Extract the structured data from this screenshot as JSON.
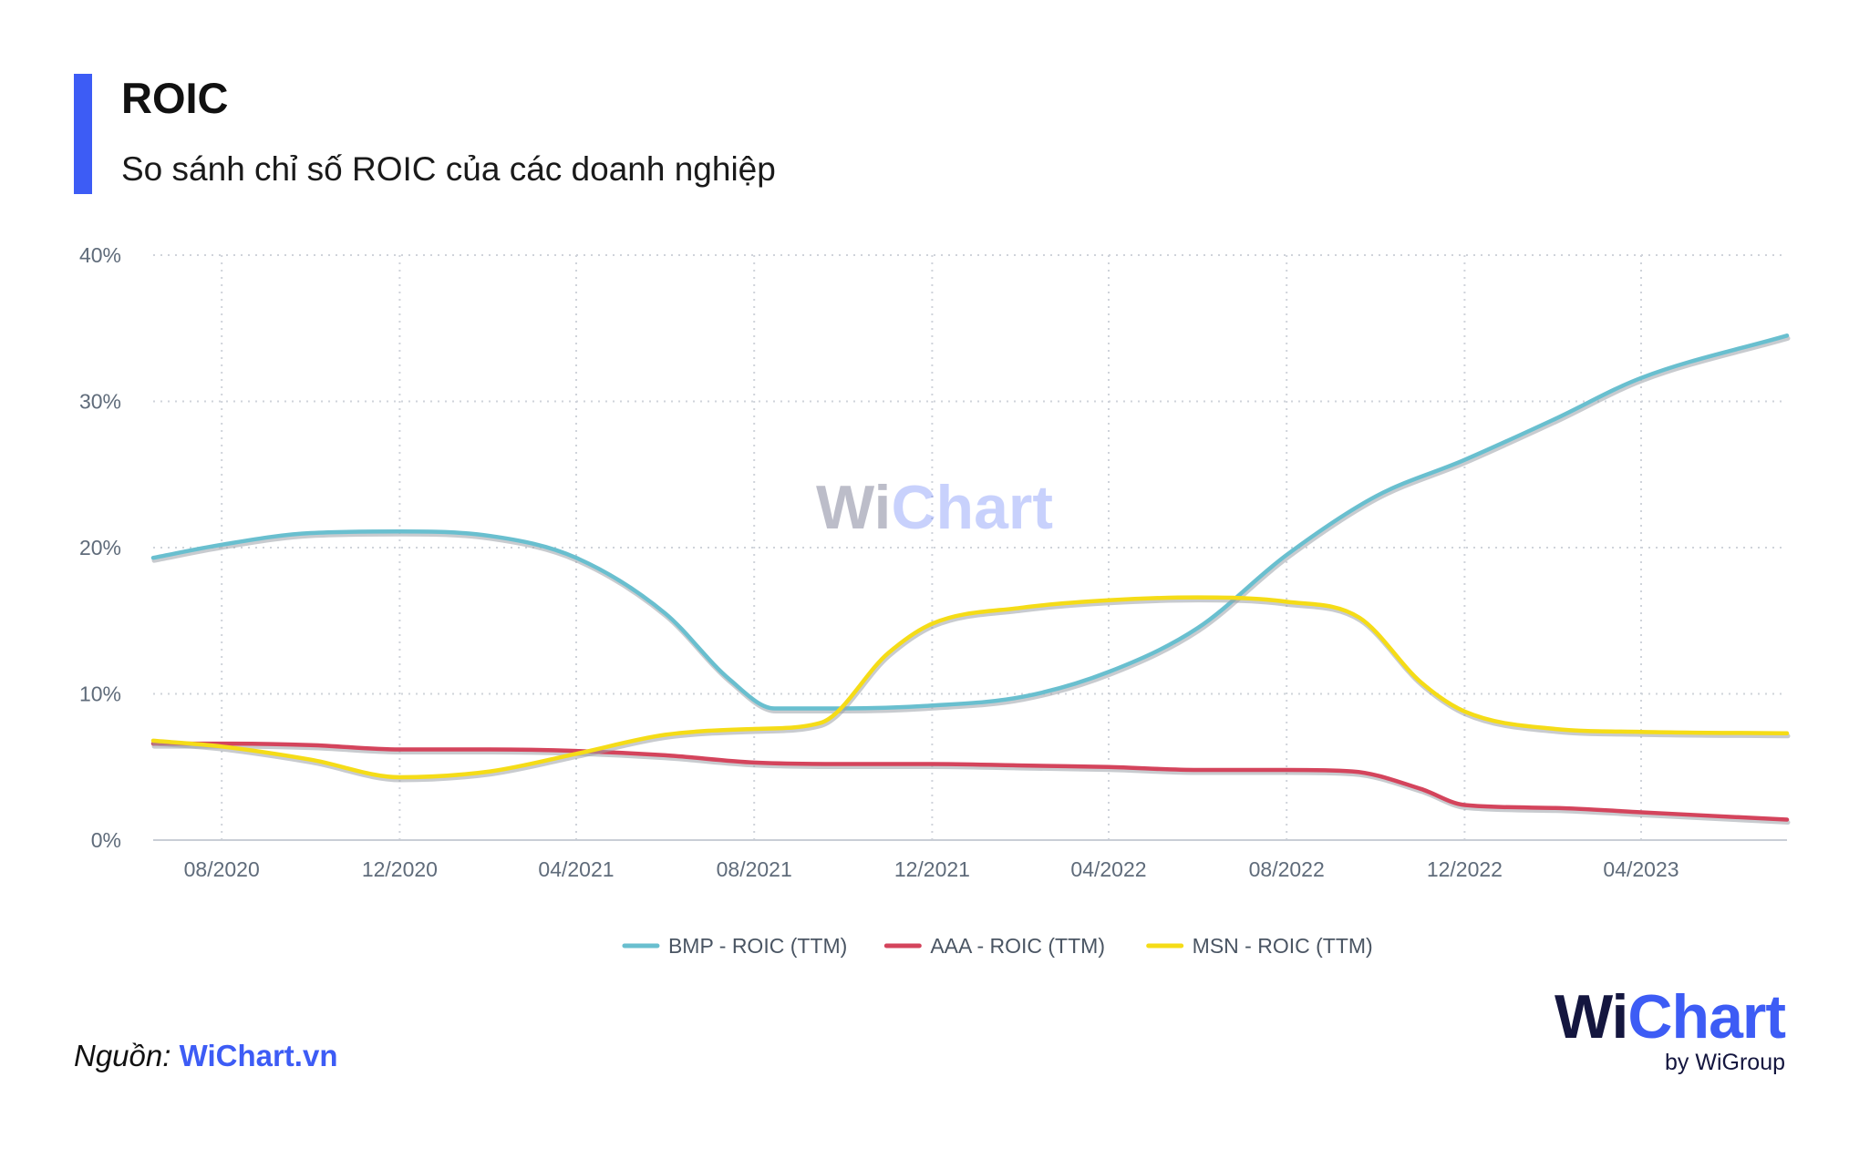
{
  "header": {
    "title": "ROIC",
    "subtitle": "So sánh chỉ số ROIC của các doanh nghiệp"
  },
  "footer": {
    "source_label": "Nguồn:",
    "source_name": "WiChart.vn"
  },
  "brand": {
    "logo_wi": "Wi",
    "logo_chart": "Chart",
    "tagline": "by WiGroup"
  },
  "watermark": {
    "wi": "Wi",
    "chart": "Chart"
  },
  "colors": {
    "accent": "#3d5cf5",
    "bmp": "#69bfcf",
    "aaa": "#d4445c",
    "msn": "#f5dc17"
  },
  "chart_data": {
    "type": "line",
    "title": "ROIC",
    "ylim": [
      0,
      40
    ],
    "xlim": [
      "2020-06-15",
      "2023-07-10"
    ],
    "y_ticks": [
      0,
      10,
      20,
      30,
      40
    ],
    "y_tick_labels": [
      "0%",
      "10%",
      "20%",
      "30%",
      "40%"
    ],
    "x_ticks": [
      "2020-08-01",
      "2020-12-01",
      "2021-04-01",
      "2021-08-01",
      "2021-12-01",
      "2022-04-01",
      "2022-08-01",
      "2022-12-01",
      "2023-04-01"
    ],
    "x_tick_labels": [
      "08/2020",
      "12/2020",
      "04/2021",
      "08/2021",
      "12/2021",
      "04/2022",
      "08/2022",
      "12/2022",
      "04/2023"
    ],
    "grid": true,
    "legend_position": "bottom-center",
    "series": [
      {
        "name": "BMP - ROIC (TTM)",
        "color": "#69bfcf",
        "x": [
          "2020-06-15",
          "2020-08-01",
          "2020-10-01",
          "2020-12-01",
          "2021-02-01",
          "2021-04-01",
          "2021-06-01",
          "2021-07-15",
          "2021-08-15",
          "2021-10-01",
          "2021-12-01",
          "2022-02-01",
          "2022-04-01",
          "2022-06-01",
          "2022-08-01",
          "2022-10-01",
          "2022-12-01",
          "2023-02-01",
          "2023-04-01",
          "2023-07-10"
        ],
        "y": [
          19.3,
          20.2,
          21.0,
          21.1,
          20.8,
          19.3,
          15.5,
          11.0,
          9.0,
          9.0,
          9.2,
          9.8,
          11.5,
          14.5,
          19.5,
          23.5,
          26.0,
          28.8,
          31.6,
          34.5
        ]
      },
      {
        "name": "AAA - ROIC (TTM)",
        "color": "#d4445c",
        "x": [
          "2020-06-15",
          "2020-08-01",
          "2020-10-01",
          "2020-12-01",
          "2021-02-01",
          "2021-04-01",
          "2021-06-01",
          "2021-08-01",
          "2021-10-01",
          "2021-12-01",
          "2022-02-01",
          "2022-04-01",
          "2022-06-01",
          "2022-08-01",
          "2022-09-15",
          "2022-11-01",
          "2022-12-01",
          "2023-02-01",
          "2023-04-01",
          "2023-07-10"
        ],
        "y": [
          6.6,
          6.6,
          6.5,
          6.2,
          6.2,
          6.1,
          5.8,
          5.3,
          5.2,
          5.2,
          5.1,
          5.0,
          4.8,
          4.8,
          4.7,
          3.5,
          2.4,
          2.2,
          1.9,
          1.4
        ]
      },
      {
        "name": "MSN - ROIC (TTM)",
        "color": "#f5dc17",
        "x": [
          "2020-06-15",
          "2020-08-01",
          "2020-10-01",
          "2020-12-01",
          "2021-02-01",
          "2021-04-01",
          "2021-06-01",
          "2021-08-01",
          "2021-09-15",
          "2021-11-01",
          "2021-12-01",
          "2022-02-01",
          "2022-04-01",
          "2022-06-01",
          "2022-08-01",
          "2022-09-20",
          "2022-11-01",
          "2022-12-01",
          "2023-02-01",
          "2023-04-01",
          "2023-07-10"
        ],
        "y": [
          6.8,
          6.4,
          5.5,
          4.3,
          4.7,
          5.9,
          7.2,
          7.6,
          8.0,
          12.8,
          14.8,
          15.9,
          16.4,
          16.6,
          16.3,
          15.2,
          10.8,
          8.8,
          7.6,
          7.4,
          7.3
        ]
      }
    ]
  }
}
